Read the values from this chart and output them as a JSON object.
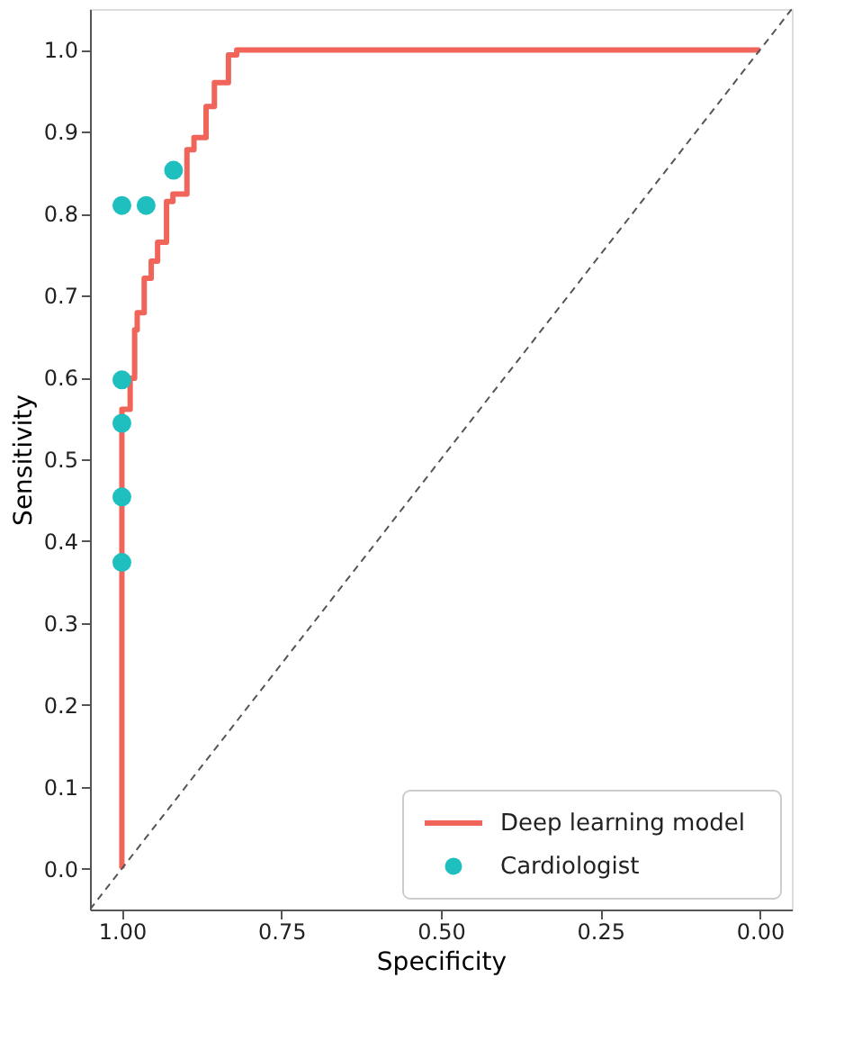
{
  "chart_data": {
    "type": "line",
    "xlabel": "Specificity",
    "ylabel": "Sensitivity",
    "xlim": [
      1.05,
      -0.05
    ],
    "ylim": [
      -0.05,
      1.05
    ],
    "xticks": [
      {
        "value": 1,
        "label": "1.00"
      },
      0.75,
      {
        "value": 0.5,
        "label": "0.50"
      },
      0.25,
      {
        "value": 0,
        "label": "0.00"
      }
    ],
    "yticks": [
      {
        "value": 0,
        "label": "0.0"
      },
      0.1,
      0.2,
      0.3,
      0.4,
      0.5,
      0.6,
      0.7,
      0.8,
      0.9,
      {
        "value": 1,
        "label": "1.0"
      }
    ],
    "grid": false,
    "legend": "bottom right",
    "series": [
      {
        "name": "Deep learning model",
        "type": "step",
        "color": "#f0645a",
        "line_style": "solid",
        "marker": "none",
        "x": [
          1.0,
          1.0,
          0.987,
          0.987,
          0.98,
          0.98,
          0.976,
          0.976,
          0.965,
          0.965,
          0.954,
          0.954,
          0.944,
          0.944,
          0.93,
          0.93,
          0.92,
          0.92,
          0.898,
          0.898,
          0.887,
          0.887,
          0.868,
          0.868,
          0.855,
          0.855,
          0.833,
          0.833,
          0.82,
          0.82,
          0.0
        ],
        "values": [
          0.0,
          0.561,
          0.561,
          0.599,
          0.599,
          0.658,
          0.658,
          0.679,
          0.679,
          0.721,
          0.721,
          0.742,
          0.742,
          0.765,
          0.765,
          0.815,
          0.815,
          0.824,
          0.824,
          0.878,
          0.878,
          0.893,
          0.893,
          0.931,
          0.931,
          0.96,
          0.96,
          0.994,
          0.994,
          1.0,
          1.0
        ]
      },
      {
        "name": "Cardiologist",
        "type": "scatter",
        "color": "#1fbfbf",
        "marker": "circle",
        "x": [
          1.0,
          0.962,
          0.919,
          1.0,
          1.0,
          1.0,
          1.0
        ],
        "values": [
          0.81,
          0.81,
          0.853,
          0.597,
          0.544,
          0.454,
          0.374
        ]
      },
      {
        "color": "#555555",
        "line_style": "dashed",
        "marker": "none",
        "x": [
          1.05,
          -0.05
        ],
        "values": [
          -0.05,
          1.05
        ]
      }
    ]
  }
}
